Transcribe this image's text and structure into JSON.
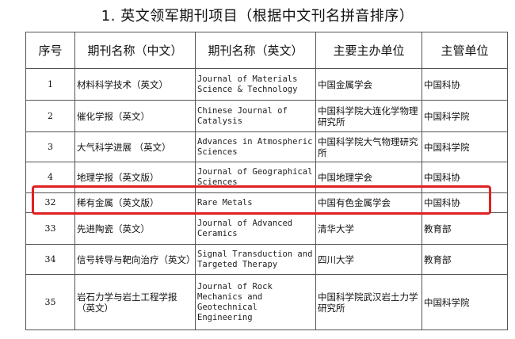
{
  "title": "1. 英文领军期刊项目（根据中文刊名拼音排序）",
  "table": {
    "headers": [
      "序号",
      "期刊名称（中文）",
      "期刊名称（英文）",
      "主要主办单位",
      "主管单位"
    ],
    "rows": [
      {
        "no": "1",
        "cn": "材料科学技术（英文）",
        "en": "Journal of Materials Science & Technology",
        "sponsor": "中国金属学会",
        "authority": "中国科协"
      },
      {
        "no": "2",
        "cn": "催化学报（英文）",
        "en": "Chinese Journal of Catalysis",
        "sponsor": "中国科学院大连化学物理研究所",
        "authority": "中国科学院"
      },
      {
        "no": "3",
        "cn": "大气科学进展 （英文）",
        "en": "Advances in Atmospheric Sciences",
        "sponsor": "中国科学院大气物理研究所",
        "authority": "中国科学院"
      },
      {
        "no": "4",
        "cn": "地理学报（英文版）",
        "en": "Journal of Geographical Sciences",
        "sponsor": "中国地理学会",
        "authority": "中国科协"
      },
      {
        "no": "32",
        "cn": "稀有金属（英文版）",
        "en": "Rare Metals",
        "sponsor": "中国有色金属学会",
        "authority": "中国科协"
      },
      {
        "no": "33",
        "cn": "先进陶瓷（英文）",
        "en": "Journal of Advanced Ceramics",
        "sponsor": "清华大学",
        "authority": "教育部"
      },
      {
        "no": "34",
        "cn": "信号转导与靶向治疗（英文）",
        "en": "Signal Transduction and Targeted Therapy",
        "sponsor": "四川大学",
        "authority": "教育部"
      },
      {
        "no": "35",
        "cn": "岩石力学与岩土工程学报（英文）",
        "en": "Journal of Rock Mechanics and Geotechnical Engineering",
        "sponsor": "中国科学院武汉岩土力学研究所",
        "authority": "中国科学院"
      }
    ]
  },
  "highlight_color": "#e02020"
}
